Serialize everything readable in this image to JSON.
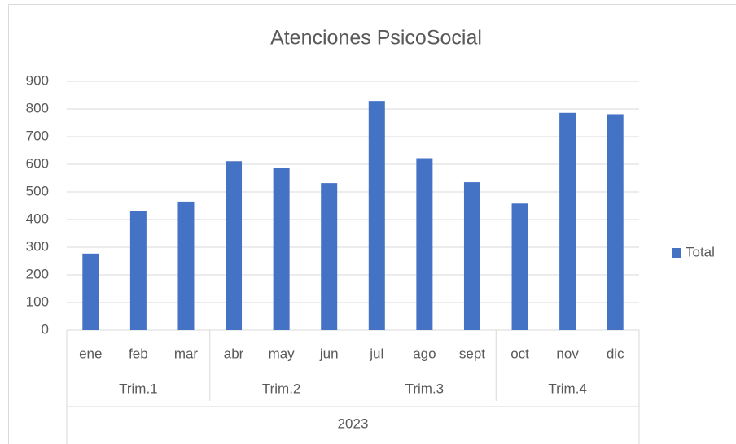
{
  "chart_data": {
    "type": "bar",
    "title": "Atenciones PsicoSocial",
    "groups": [
      {
        "label": "Trim.1",
        "categories": [
          "ene",
          "feb",
          "mar"
        ]
      },
      {
        "label": "Trim.2",
        "categories": [
          "abr",
          "may",
          "jun"
        ]
      },
      {
        "label": "Trim.3",
        "categories": [
          "jul",
          "ago",
          "sept"
        ]
      },
      {
        "label": "Trim.4",
        "categories": [
          "oct",
          "nov",
          "dic"
        ]
      }
    ],
    "group_label": "2023",
    "series": [
      {
        "name": "Total",
        "color": "#4472c4",
        "values": [
          277,
          430,
          465,
          611,
          587,
          532,
          829,
          622,
          535,
          458,
          786,
          781
        ]
      }
    ],
    "ylim": [
      0,
      900
    ],
    "yticks": [
      0,
      100,
      200,
      300,
      400,
      500,
      600,
      700,
      800,
      900
    ],
    "grid": true,
    "legend": "right"
  }
}
